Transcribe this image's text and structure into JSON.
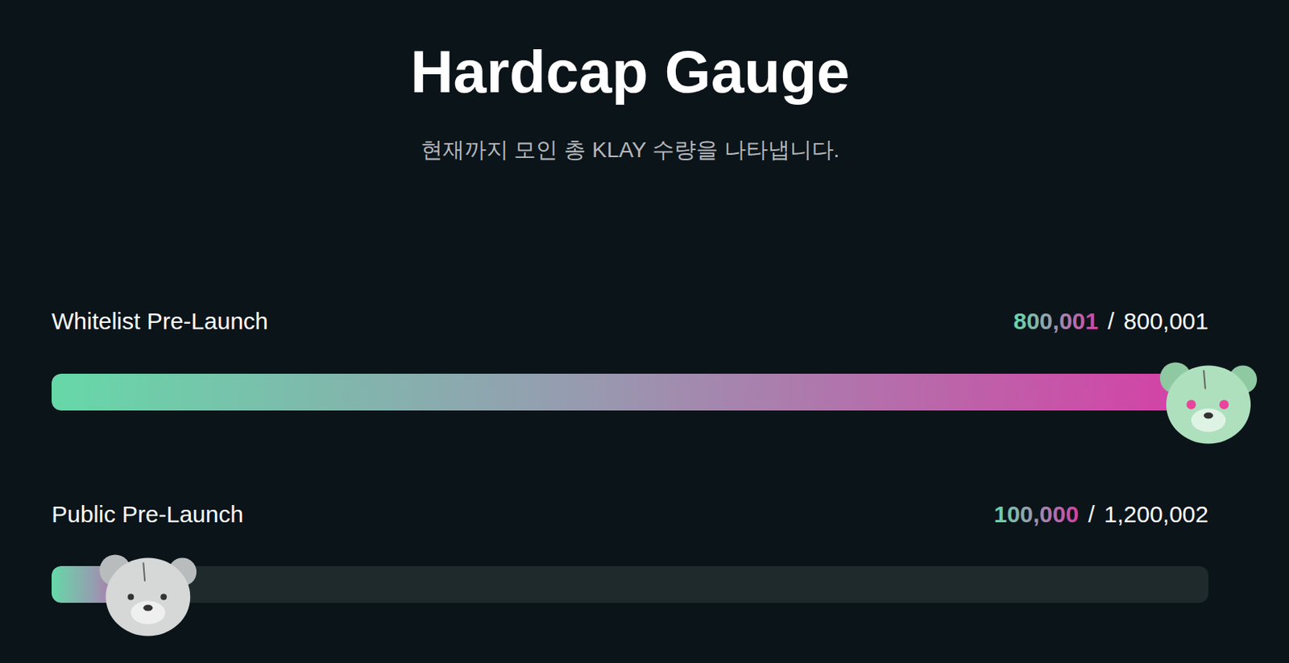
{
  "chart_data": {
    "type": "bar",
    "orientation": "horizontal",
    "title": "Hardcap Gauge",
    "subtitle": "현재까지 모인 총 KLAY 수량을 나타냅니다.",
    "categories": [
      "Whitelist Pre-Launch",
      "Public Pre-Launch"
    ],
    "values": [
      800001,
      100000
    ],
    "value_labels": [
      "800,001",
      "100,000"
    ],
    "caps": [
      800001,
      1200002
    ],
    "cap_labels": [
      "800,001",
      "1,200,002"
    ],
    "separator": "/",
    "data_labels": true,
    "tick_labels": false
  }
}
